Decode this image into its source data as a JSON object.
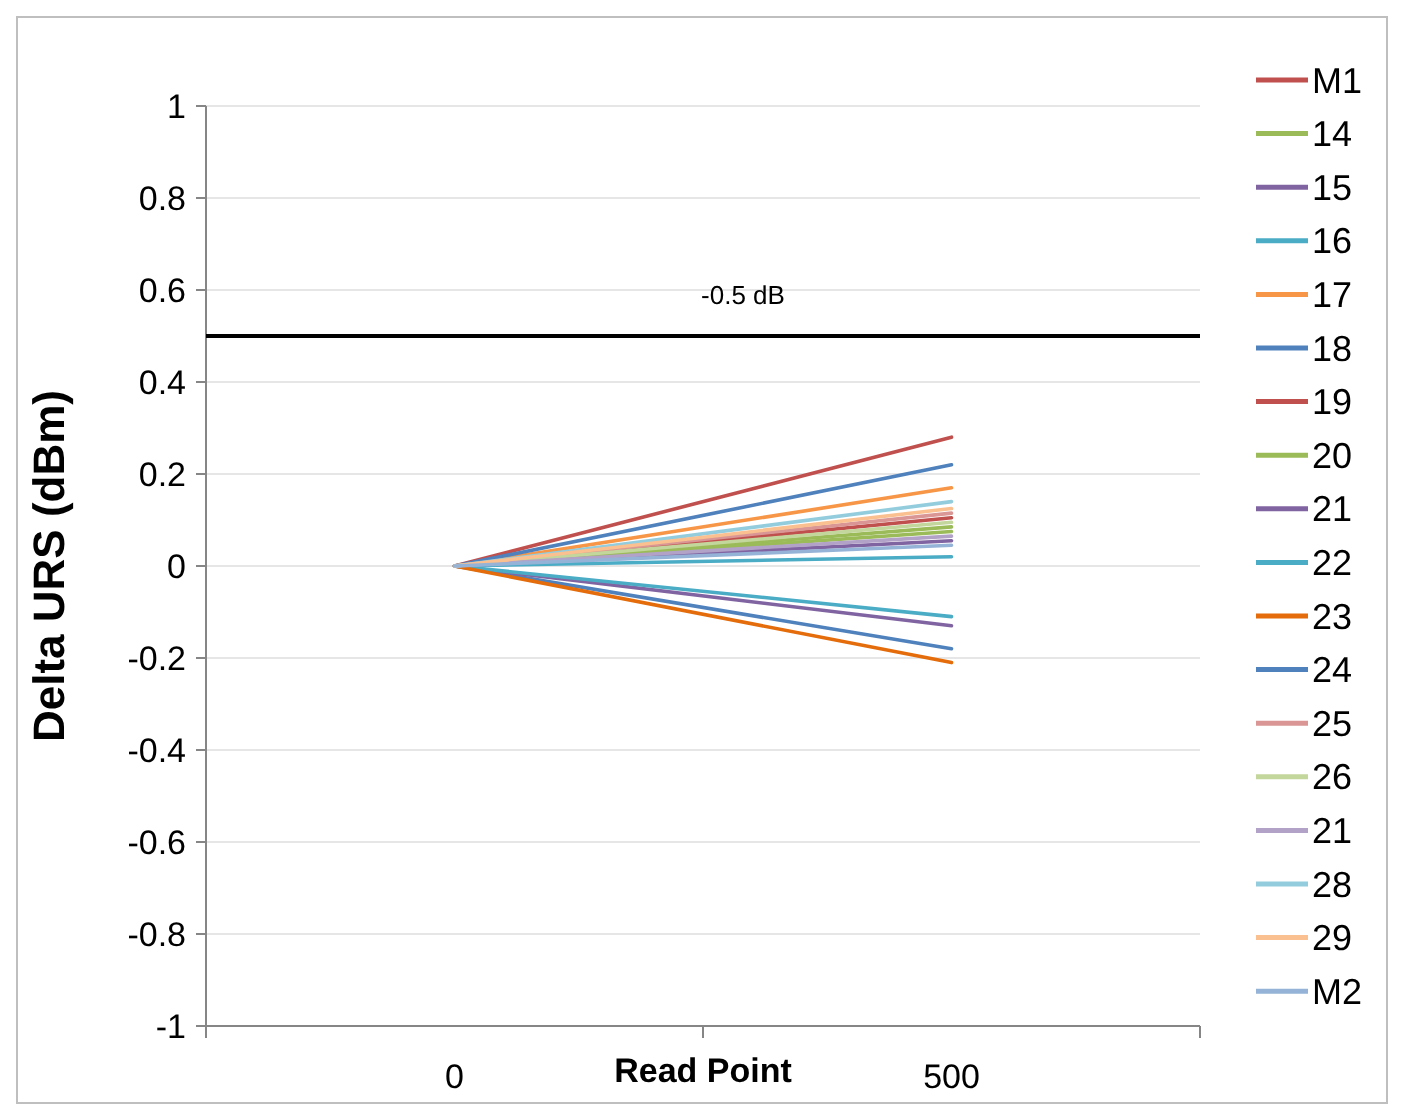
{
  "chart_data": {
    "type": "line",
    "xlabel": "Read Point",
    "ylabel": "Delta URS (dBm)",
    "categories": [
      "0",
      "500"
    ],
    "ylim": [
      -1,
      1
    ],
    "yticks": [
      {
        "value": -1,
        "label": "-1"
      },
      {
        "value": -0.8,
        "label": "-0.8"
      },
      {
        "value": -0.6,
        "label": "-0.6"
      },
      {
        "value": -0.4,
        "label": "-0.4"
      },
      {
        "value": -0.2,
        "label": "-0.2"
      },
      {
        "value": 0,
        "label": "0"
      },
      {
        "value": 0.2,
        "label": "0.2"
      },
      {
        "value": 0.4,
        "label": "0.4"
      },
      {
        "value": 0.6,
        "label": "0.6"
      },
      {
        "value": 0.8,
        "label": "0.8"
      },
      {
        "value": 1,
        "label": "1"
      }
    ],
    "grid": "y",
    "legend": "right",
    "marker": "none",
    "line_style": "solid",
    "ref_lines": [
      {
        "axis": "y",
        "value": 0.5,
        "label": "-0.5 dB",
        "color": "#000000"
      }
    ],
    "series": [
      {
        "name": "M1",
        "color": "#c0504d",
        "values": [
          0,
          0.28
        ]
      },
      {
        "name": "14",
        "color": "#9bbb59",
        "values": [
          0,
          0.085
        ]
      },
      {
        "name": "15",
        "color": "#8064a2",
        "values": [
          0,
          0.055
        ]
      },
      {
        "name": "16",
        "color": "#4bacc6",
        "values": [
          0,
          0.02
        ]
      },
      {
        "name": "17",
        "color": "#f79646",
        "values": [
          0,
          0.17
        ]
      },
      {
        "name": "18",
        "color": "#4f81bd",
        "values": [
          0,
          -0.18
        ]
      },
      {
        "name": "19",
        "color": "#c0504d",
        "values": [
          0,
          0.105
        ]
      },
      {
        "name": "20",
        "color": "#9bbb59",
        "values": [
          0,
          0.075
        ]
      },
      {
        "name": "21",
        "color": "#8064a2",
        "values": [
          0,
          -0.13
        ]
      },
      {
        "name": "22",
        "color": "#4bacc6",
        "values": [
          0,
          -0.11
        ]
      },
      {
        "name": "23",
        "color": "#e46c0a",
        "values": [
          0,
          -0.21
        ]
      },
      {
        "name": "24",
        "color": "#4f81bd",
        "values": [
          0,
          0.22
        ]
      },
      {
        "name": "25",
        "color": "#d99694",
        "values": [
          0,
          0.115
        ]
      },
      {
        "name": "26",
        "color": "#c3d69b",
        "values": [
          0,
          0.095
        ]
      },
      {
        "name": "21",
        "color": "#b3a2c7",
        "values": [
          0,
          0.065
        ]
      },
      {
        "name": "28",
        "color": "#93cddd",
        "values": [
          0,
          0.14
        ]
      },
      {
        "name": "29",
        "color": "#fac090",
        "values": [
          0,
          0.125
        ]
      },
      {
        "name": "M2",
        "color": "#95b3d7",
        "values": [
          0,
          0.045
        ]
      }
    ]
  }
}
